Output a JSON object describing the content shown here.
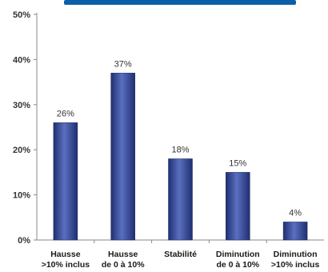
{
  "chart_data": {
    "type": "bar",
    "categories": [
      [
        "Hausse",
        ">10% inclus"
      ],
      [
        "Hausse",
        "de 0 à 10%"
      ],
      [
        "Stabilité"
      ],
      [
        "Diminution",
        "de 0 à 10%"
      ],
      [
        "Diminution",
        ">10% inclus"
      ]
    ],
    "values": [
      26,
      37,
      18,
      15,
      4
    ],
    "data_labels": [
      "26%",
      "37%",
      "18%",
      "15%",
      "4%"
    ],
    "ylim": [
      0,
      50
    ],
    "yticks": [
      0,
      10,
      20,
      30,
      40,
      50
    ],
    "ytick_labels": [
      "0%",
      "10%",
      "20%",
      "30%",
      "40%",
      "50%"
    ],
    "grid": false,
    "bar_color": "#2b3f8c",
    "bar_highlight": "#5a6fc0"
  }
}
